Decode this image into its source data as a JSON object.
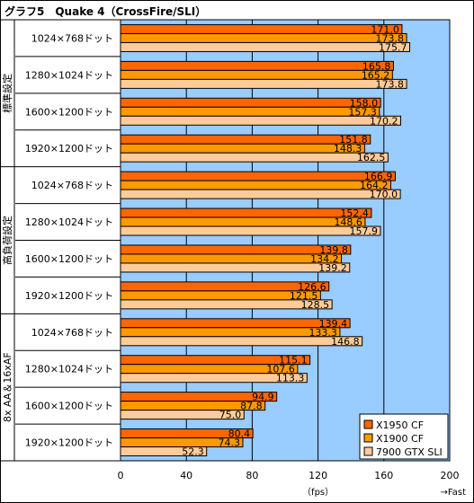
{
  "chart_data": {
    "type": "bar",
    "orientation": "horizontal",
    "title": "グラフ5　Quake 4（CrossFire/SLI）",
    "groups": [
      {
        "name": "標準設定",
        "categories": [
          "1024×768ドット",
          "1280×1024ドット",
          "1600×1200ドット",
          "1920×1200ドット"
        ]
      },
      {
        "name": "高負荷設定",
        "categories": [
          "1024×768ドット",
          "1280×1024ドット",
          "1600×1200ドット",
          "1920×1200ドット"
        ]
      },
      {
        "name": "8x AA＆16xAF",
        "categories": [
          "1024×768ドット",
          "1280×1024ドット",
          "1600×1200ドット",
          "1920×1200ドット"
        ]
      }
    ],
    "series": [
      {
        "name": "X1950 CF",
        "color": "#ff6600",
        "values": [
          171.0,
          165.8,
          158.0,
          151.8,
          166.9,
          152.4,
          139.8,
          126.6,
          139.4,
          115.1,
          94.9,
          80.4
        ]
      },
      {
        "name": "X1900 CF",
        "color": "#ff9900",
        "values": [
          173.8,
          165.2,
          157.3,
          148.3,
          164.2,
          148.6,
          134.2,
          121.5,
          133.3,
          107.6,
          87.8,
          74.3
        ]
      },
      {
        "name": "7900 GTX SLI",
        "color": "#ffcc99",
        "values": [
          175.7,
          173.8,
          170.2,
          162.5,
          170.0,
          157.9,
          139.2,
          128.5,
          146.8,
          113.3,
          75.0,
          52.3
        ]
      }
    ],
    "xlim": [
      0,
      200
    ],
    "xticks": [
      0,
      40,
      80,
      120,
      160,
      200
    ],
    "xlabel": "（fps）",
    "x_direction_label": "→Fast",
    "plot_background": "#99ccff",
    "grid": "vertical",
    "legend_position": "bottom-right"
  }
}
